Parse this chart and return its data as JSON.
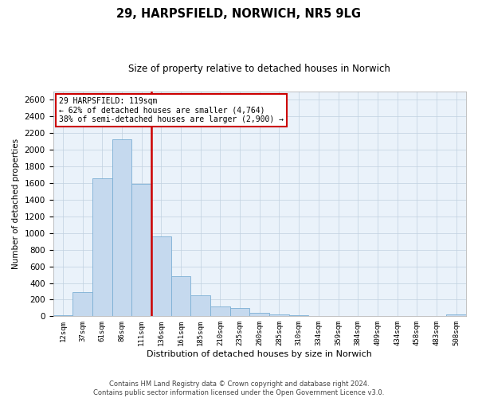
{
  "title_line1": "29, HARPSFIELD, NORWICH, NR5 9LG",
  "title_line2": "Size of property relative to detached houses in Norwich",
  "xlabel": "Distribution of detached houses by size in Norwich",
  "ylabel": "Number of detached properties",
  "categories": [
    "12sqm",
    "37sqm",
    "61sqm",
    "86sqm",
    "111sqm",
    "136sqm",
    "161sqm",
    "185sqm",
    "210sqm",
    "235sqm",
    "260sqm",
    "285sqm",
    "310sqm",
    "334sqm",
    "359sqm",
    "384sqm",
    "409sqm",
    "434sqm",
    "458sqm",
    "483sqm",
    "508sqm"
  ],
  "values": [
    10,
    290,
    1660,
    2130,
    1590,
    960,
    480,
    250,
    120,
    95,
    45,
    25,
    10,
    0,
    0,
    0,
    0,
    0,
    0,
    0,
    20
  ],
  "bar_color": "#c5d9ee",
  "bar_edge_color": "#7bafd4",
  "vline_color": "#cc0000",
  "vline_pos": 4.5,
  "annotation_text": "29 HARPSFIELD: 119sqm\n← 62% of detached houses are smaller (4,764)\n38% of semi-detached houses are larger (2,900) →",
  "ylim_max": 2700,
  "yticks": [
    0,
    200,
    400,
    600,
    800,
    1000,
    1200,
    1400,
    1600,
    1800,
    2000,
    2200,
    2400,
    2600
  ],
  "grid_color": "#c0d0e0",
  "bg_color": "#eaf2fa",
  "footer_line1": "Contains HM Land Registry data © Crown copyright and database right 2024.",
  "footer_line2": "Contains public sector information licensed under the Open Government Licence v3.0."
}
